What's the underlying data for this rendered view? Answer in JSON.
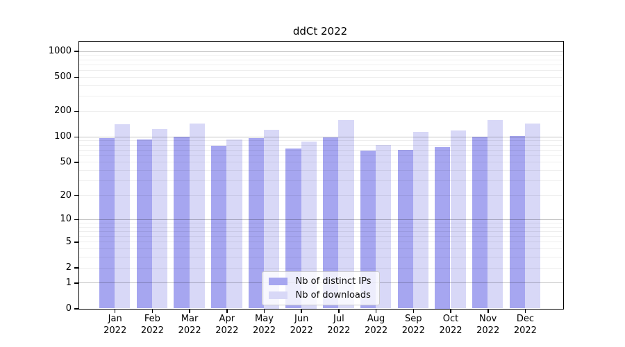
{
  "chart_data": {
    "type": "bar",
    "title": "ddCt 2022",
    "categories": [
      "Jan",
      "Feb",
      "Mar",
      "Apr",
      "May",
      "Jun",
      "Jul",
      "Aug",
      "Sep",
      "Oct",
      "Nov",
      "Dec"
    ],
    "category_sublabel": "2022",
    "series": [
      {
        "name": "Nb of distinct IPs",
        "color": "#a6a6f0",
        "values": [
          95,
          92,
          100,
          78,
          95,
          72,
          98,
          68,
          69,
          75,
          100,
          101
        ]
      },
      {
        "name": "Nb of downloads",
        "color": "#d8d8f7",
        "values": [
          139,
          123,
          143,
          93,
          120,
          88,
          155,
          80,
          114,
          117,
          155,
          143
        ]
      }
    ],
    "yticks": [
      0,
      1,
      2,
      5,
      10,
      20,
      50,
      100,
      200,
      500,
      1000
    ],
    "ylim": [
      0,
      1300
    ],
    "yscale": "log10(value+1)",
    "xlabel": "",
    "ylabel": "",
    "grid": "horizontal major+minor, drawn above bars",
    "legend_position": "lower center"
  }
}
